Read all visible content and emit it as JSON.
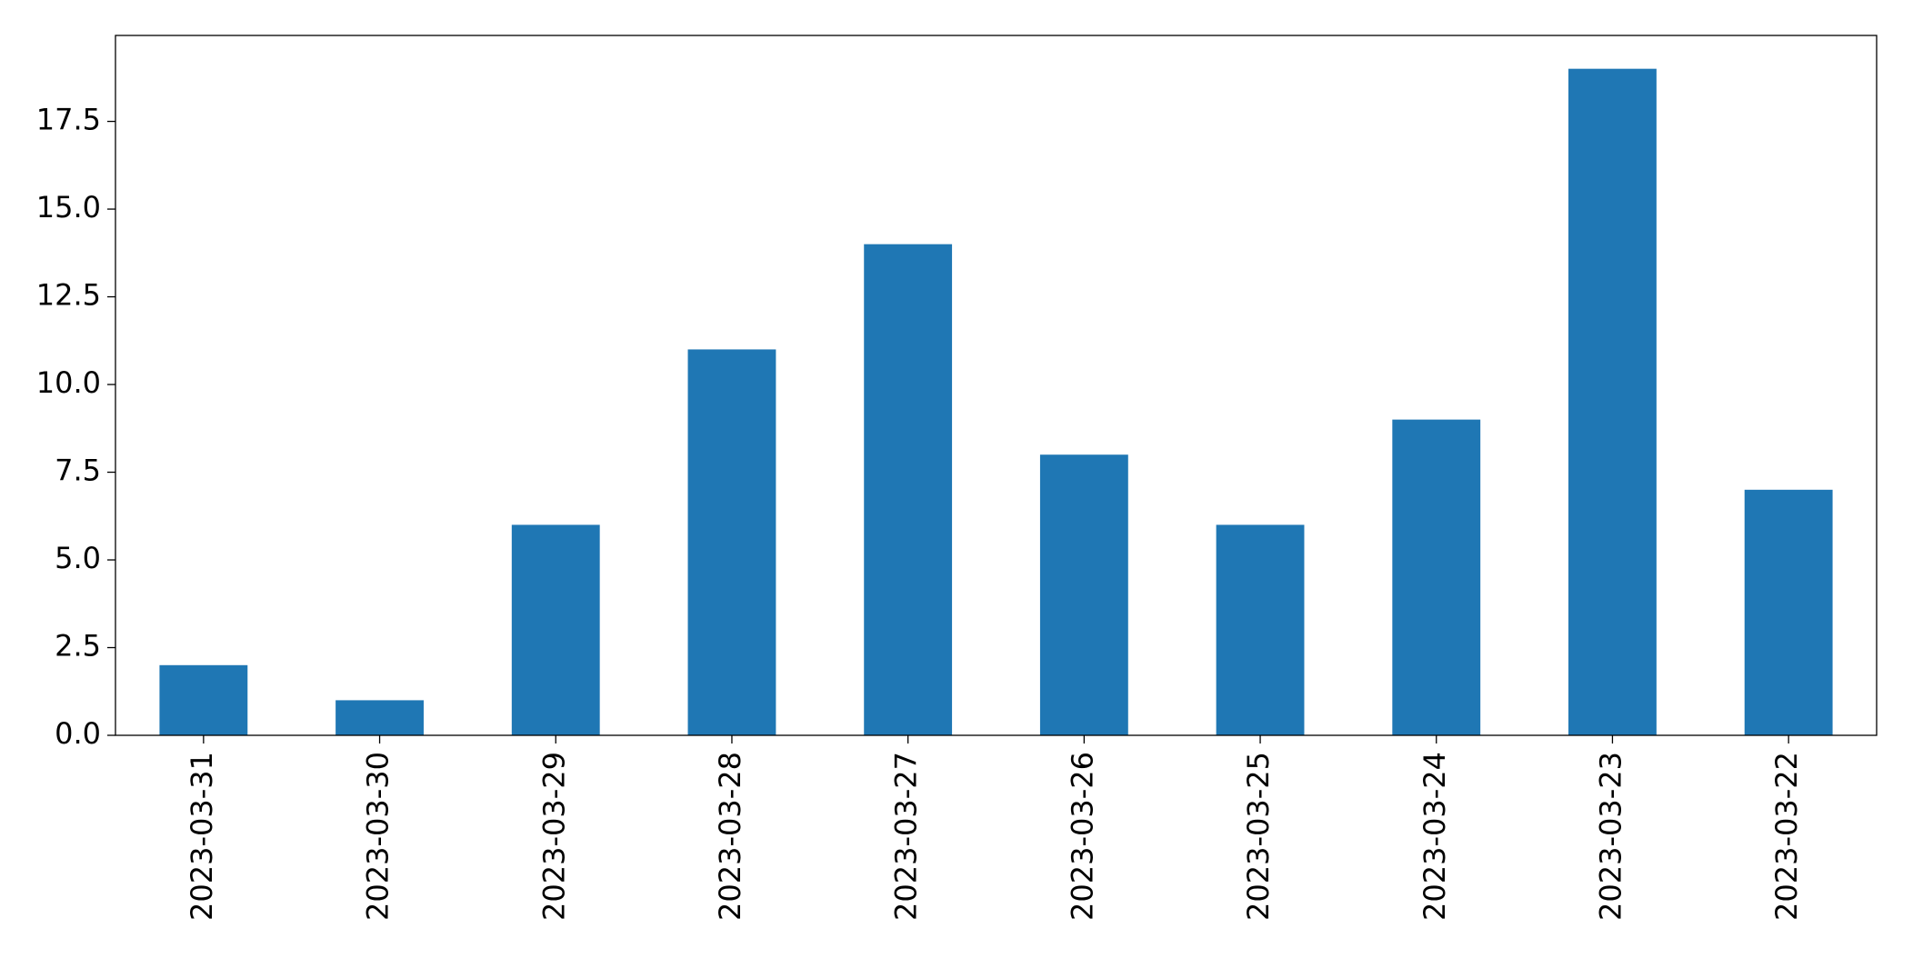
{
  "chart_data": {
    "type": "bar",
    "categories": [
      "2023-03-31",
      "2023-03-30",
      "2023-03-29",
      "2023-03-28",
      "2023-03-27",
      "2023-03-26",
      "2023-03-25",
      "2023-03-24",
      "2023-03-23",
      "2023-03-22"
    ],
    "values": [
      2,
      1,
      6,
      11,
      14,
      8,
      6,
      9,
      19,
      7
    ],
    "color": "#1f77b4",
    "ylim": [
      0,
      19.95
    ],
    "yticks": [
      {
        "value": 0,
        "label": "0.0"
      },
      2.5,
      {
        "value": 5,
        "label": "5.0"
      },
      7.5,
      {
        "value": 10,
        "label": "10.0"
      },
      12.5,
      {
        "value": 15,
        "label": "15.0"
      },
      17.5
    ],
    "grid": false
  }
}
